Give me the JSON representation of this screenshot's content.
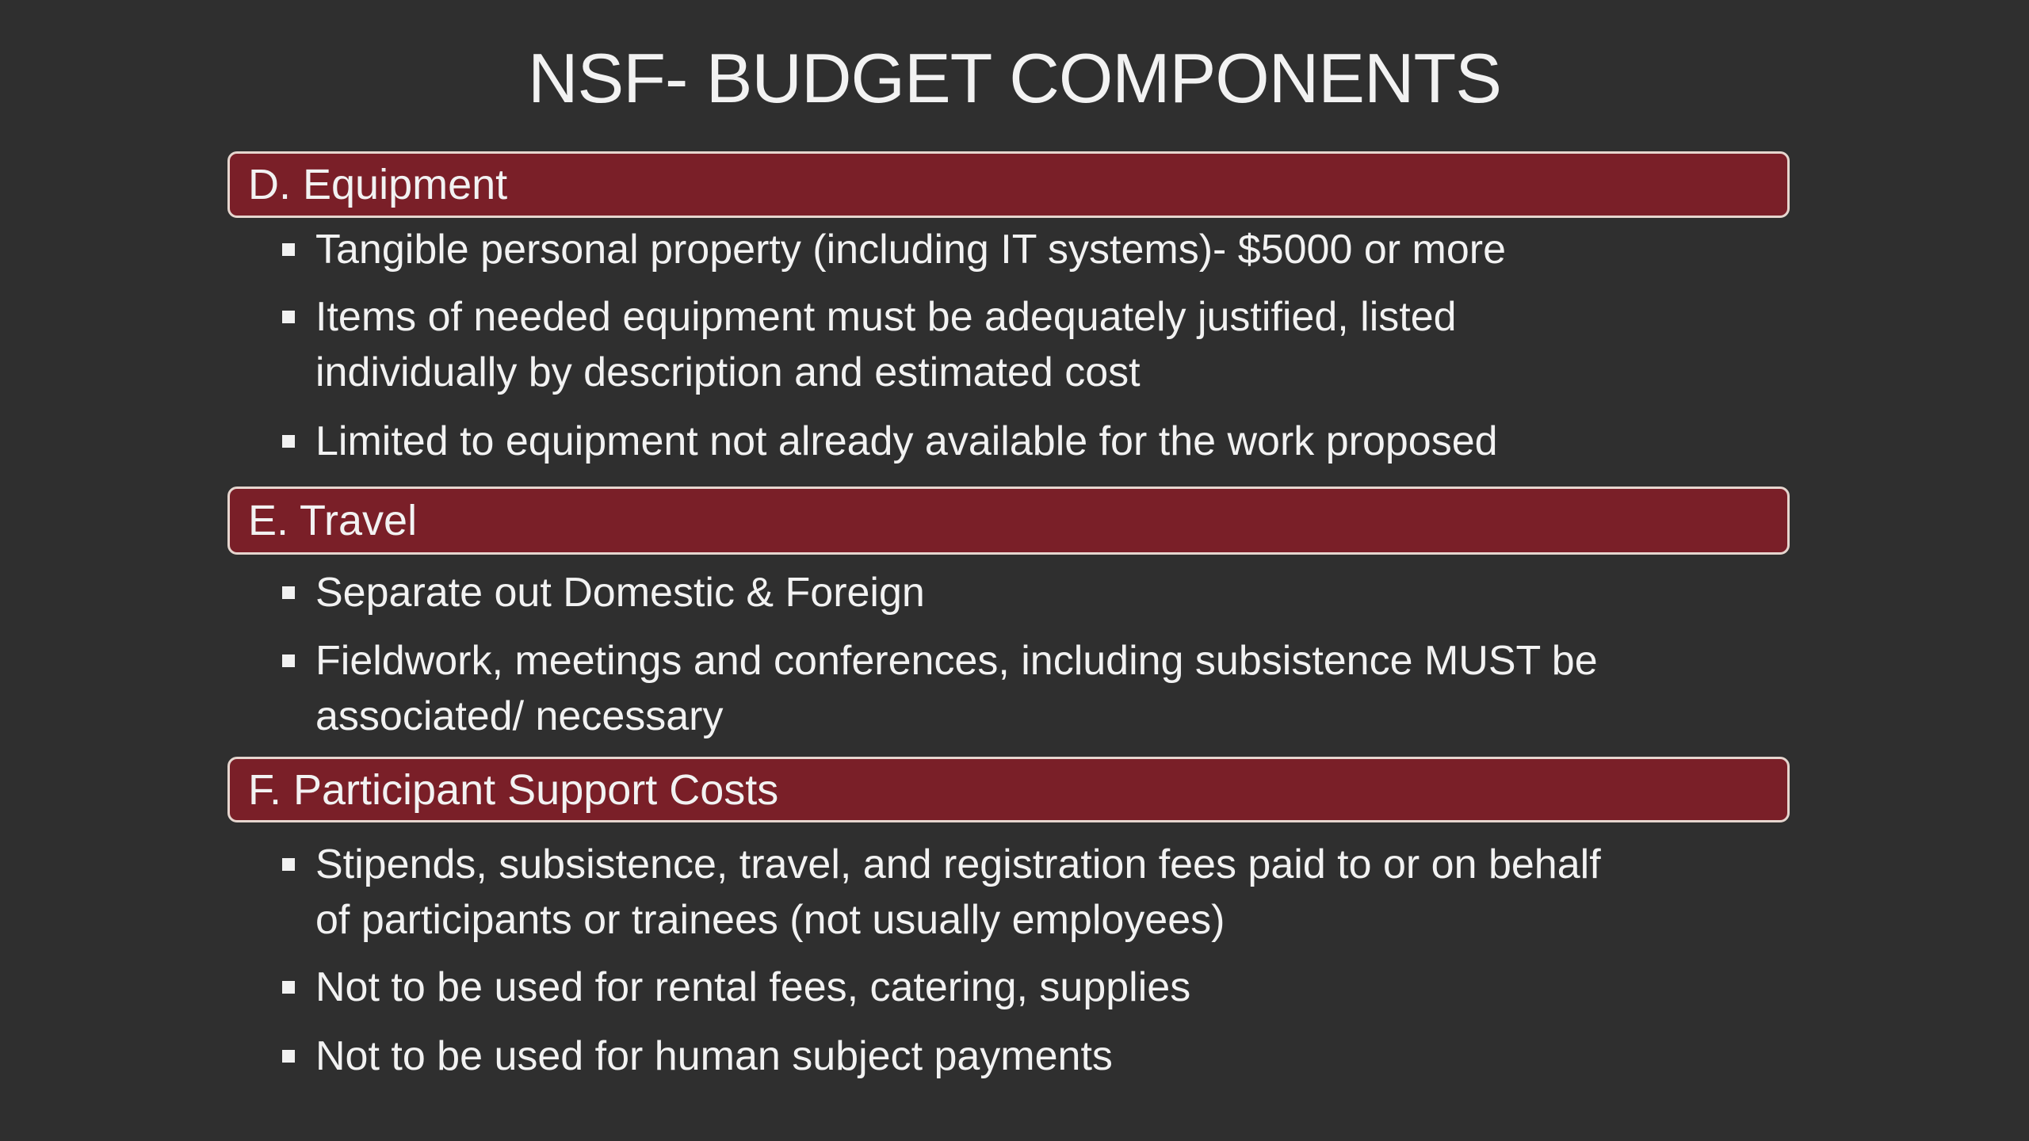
{
  "title": "NSF- BUDGET COMPONENTS",
  "colors": {
    "background": "#2f2f2f",
    "section_bar": "#7a1f28",
    "bar_border": "#e6d6cf",
    "text": "#f2f2f2"
  },
  "sections": [
    {
      "heading": "D. Equipment",
      "items": [
        {
          "lines": [
            "Tangible personal property (including IT systems)- $5000 or more"
          ]
        },
        {
          "lines": [
            "Items of needed equipment must be adequately justified, listed",
            "individually by description and estimated cost"
          ]
        },
        {
          "lines": [
            "Limited  to equipment not already available for the work proposed"
          ]
        }
      ]
    },
    {
      "heading": "E. Travel",
      "items": [
        {
          "lines": [
            "Separate out Domestic & Foreign"
          ]
        },
        {
          "lines": [
            "Fieldwork, meetings and conferences, including subsistence MUST be",
            "associated/ necessary"
          ]
        }
      ]
    },
    {
      "heading": "F. Participant Support Costs",
      "items": [
        {
          "lines": [
            "Stipends, subsistence, travel, and registration fees paid to or on behalf",
            "of participants or trainees (not usually employees)"
          ]
        },
        {
          "lines": [
            "Not to be used for rental fees, catering, supplies"
          ]
        },
        {
          "lines": [
            "Not to be used for human subject payments"
          ]
        }
      ]
    }
  ]
}
